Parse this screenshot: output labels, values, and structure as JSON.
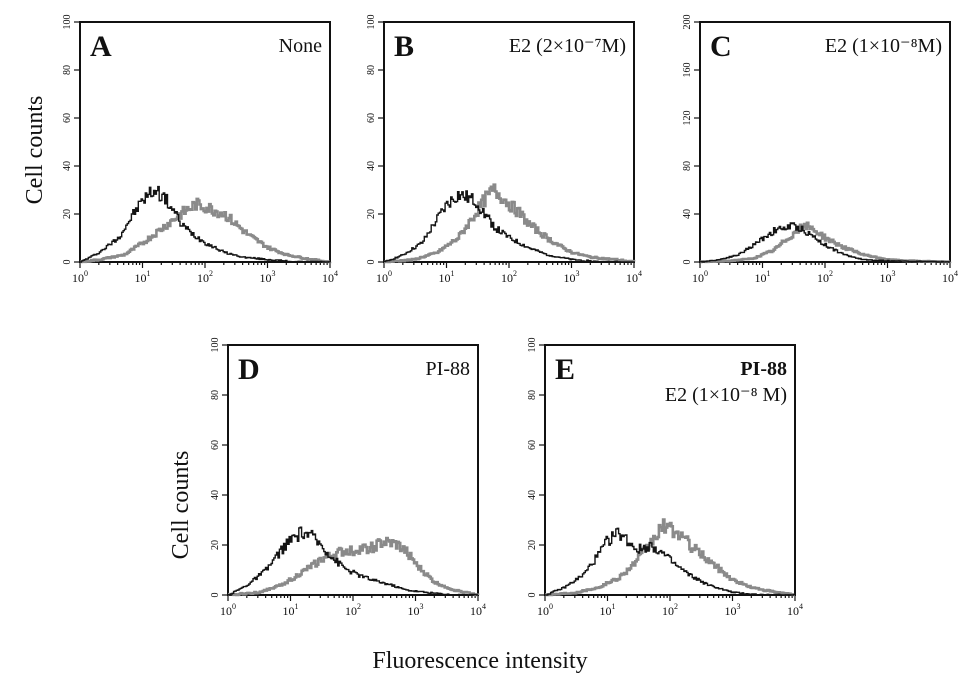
{
  "figure": {
    "ylabel": "Cell counts",
    "xlabel": "Fluorescence intensity"
  },
  "colors": {
    "control": "#141414",
    "stained": "#8a8a8a"
  },
  "chart_data": [
    {
      "type": "line",
      "panel": "A",
      "condition_lines": [
        "None"
      ],
      "xscale": "log",
      "xlim": [
        1,
        10000
      ],
      "ylim": [
        0,
        100
      ],
      "yticks": [
        0,
        20,
        40,
        60,
        80,
        100
      ],
      "series": [
        {
          "x": [
            1,
            2,
            4,
            7,
            10,
            15,
            20,
            30,
            40,
            60,
            100,
            200,
            400,
            1000,
            3000,
            10000
          ],
          "y": [
            0,
            4,
            10,
            20,
            26,
            30,
            28,
            22,
            16,
            12,
            8,
            4,
            2,
            1,
            0,
            0
          ]
        },
        {
          "x": [
            1,
            2,
            5,
            10,
            20,
            40,
            70,
            100,
            200,
            300,
            500,
            1000,
            2000,
            5000,
            10000
          ],
          "y": [
            0,
            1,
            3,
            8,
            14,
            20,
            24,
            23,
            20,
            16,
            11,
            6,
            3,
            1,
            0
          ]
        }
      ]
    },
    {
      "type": "line",
      "panel": "B",
      "condition_lines": [
        "E2 (2×10⁻⁷M)"
      ],
      "xscale": "log",
      "xlim": [
        1,
        10000
      ],
      "ylim": [
        0,
        100
      ],
      "yticks": [
        0,
        20,
        40,
        60,
        80,
        100
      ],
      "series": [
        {
          "x": [
            1,
            2,
            4,
            7,
            10,
            15,
            20,
            30,
            40,
            60,
            100,
            200,
            400,
            1000,
            3000,
            10000
          ],
          "y": [
            0,
            3,
            8,
            18,
            24,
            28,
            27,
            25,
            20,
            14,
            10,
            6,
            3,
            1,
            0,
            0
          ]
        },
        {
          "x": [
            1,
            3,
            7,
            15,
            25,
            40,
            55,
            70,
            100,
            150,
            200,
            400,
            700,
            1000,
            2000,
            5000,
            10000
          ],
          "y": [
            0,
            1,
            4,
            10,
            18,
            26,
            30,
            28,
            24,
            20,
            16,
            10,
            6,
            4,
            2,
            1,
            0
          ]
        }
      ]
    },
    {
      "type": "line",
      "panel": "C",
      "condition_lines": [
        "E2 (1×10⁻⁸M)"
      ],
      "xscale": "log",
      "xlim": [
        1,
        10000
      ],
      "ylim": [
        0,
        200
      ],
      "yticks": [
        0,
        40,
        80,
        120,
        160,
        200
      ],
      "series": [
        {
          "x": [
            1,
            2,
            4,
            7,
            10,
            15,
            20,
            30,
            40,
            60,
            100,
            200,
            400,
            1000,
            10000
          ],
          "y": [
            0,
            2,
            6,
            14,
            20,
            26,
            28,
            30,
            28,
            22,
            14,
            6,
            2,
            1,
            0
          ]
        },
        {
          "x": [
            1,
            3,
            7,
            15,
            25,
            40,
            50,
            70,
            100,
            200,
            400,
            1000,
            2000,
            10000
          ],
          "y": [
            0,
            1,
            3,
            10,
            20,
            28,
            30,
            26,
            20,
            12,
            6,
            2,
            1,
            0
          ]
        }
      ]
    },
    {
      "type": "line",
      "panel": "D",
      "condition_lines": [
        "PI-88"
      ],
      "xscale": "log",
      "xlim": [
        1,
        10000
      ],
      "ylim": [
        0,
        100
      ],
      "yticks": [
        0,
        20,
        40,
        60,
        80,
        100
      ],
      "series": [
        {
          "x": [
            1,
            2,
            4,
            7,
            10,
            15,
            20,
            30,
            50,
            80,
            120,
            200,
            400,
            700,
            1500,
            4000,
            10000
          ],
          "y": [
            0,
            4,
            10,
            18,
            22,
            25,
            24,
            20,
            14,
            10,
            8,
            6,
            4,
            2,
            1,
            0,
            0
          ]
        },
        {
          "x": [
            1,
            3,
            7,
            15,
            30,
            60,
            100,
            200,
            300,
            500,
            800,
            1000,
            2000,
            4000,
            10000
          ],
          "y": [
            0,
            1,
            4,
            9,
            14,
            17,
            18,
            19,
            21,
            20,
            16,
            12,
            5,
            2,
            0
          ]
        }
      ]
    },
    {
      "type": "line",
      "panel": "E",
      "condition_lines": [
        "PI-88",
        "E2 (1×10⁻⁸ M)"
      ],
      "xscale": "log",
      "xlim": [
        1,
        10000
      ],
      "ylim": [
        0,
        100
      ],
      "yticks": [
        0,
        20,
        40,
        60,
        80,
        100
      ],
      "series": [
        {
          "x": [
            1,
            2,
            4,
            7,
            10,
            15,
            20,
            30,
            50,
            80,
            120,
            200,
            400,
            1000,
            3000,
            10000
          ],
          "y": [
            0,
            3,
            8,
            16,
            22,
            25,
            22,
            18,
            20,
            16,
            12,
            8,
            4,
            1,
            0,
            0
          ]
        },
        {
          "x": [
            1,
            3,
            7,
            15,
            25,
            40,
            60,
            80,
            100,
            150,
            200,
            400,
            700,
            1000,
            2000,
            5000,
            10000
          ],
          "y": [
            0,
            1,
            3,
            7,
            12,
            18,
            24,
            28,
            26,
            24,
            20,
            14,
            9,
            6,
            3,
            1,
            0
          ]
        }
      ]
    }
  ]
}
